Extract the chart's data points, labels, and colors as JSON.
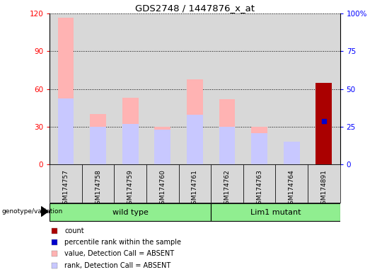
{
  "title": "GDS2748 / 1447876_x_at",
  "samples": [
    "GSM174757",
    "GSM174758",
    "GSM174759",
    "GSM174760",
    "GSM174761",
    "GSM174762",
    "GSM174763",
    "GSM174764",
    "GSM174891"
  ],
  "value_absent": [
    117,
    40,
    53,
    30,
    68,
    52,
    30,
    13,
    0
  ],
  "rank_absent_pct": [
    44,
    25,
    27,
    23,
    33,
    25,
    21,
    15,
    0
  ],
  "count_value": [
    0,
    0,
    0,
    0,
    0,
    0,
    0,
    0,
    65
  ],
  "percentile_rank_pct": [
    0,
    0,
    0,
    0,
    0,
    0,
    0,
    0,
    29
  ],
  "ylim_left": [
    0,
    120
  ],
  "ylim_right": [
    0,
    100
  ],
  "yticks_left": [
    0,
    30,
    60,
    90,
    120
  ],
  "yticks_right": [
    0,
    25,
    50,
    75,
    100
  ],
  "ytick_labels_left": [
    "0",
    "30",
    "60",
    "90",
    "120"
  ],
  "ytick_labels_right": [
    "0",
    "25",
    "50",
    "75",
    "100%"
  ],
  "color_value_absent": "#ffb3b3",
  "color_rank_absent": "#c8c8ff",
  "color_count": "#aa0000",
  "color_percentile": "#0000cc",
  "wild_type_indices": [
    0,
    1,
    2,
    3,
    4
  ],
  "lim1_mutant_indices": [
    5,
    6,
    7,
    8
  ],
  "wild_type_label": "wild type",
  "lim1_label": "Lim1 mutant",
  "genotype_label": "genotype/variation",
  "legend_count": "count",
  "legend_percentile": "percentile rank within the sample",
  "legend_value_absent": "value, Detection Call = ABSENT",
  "legend_rank_absent": "rank, Detection Call = ABSENT",
  "bg_color": "#d8d8d8",
  "green_light": "#90ee90",
  "bar_width": 0.5
}
